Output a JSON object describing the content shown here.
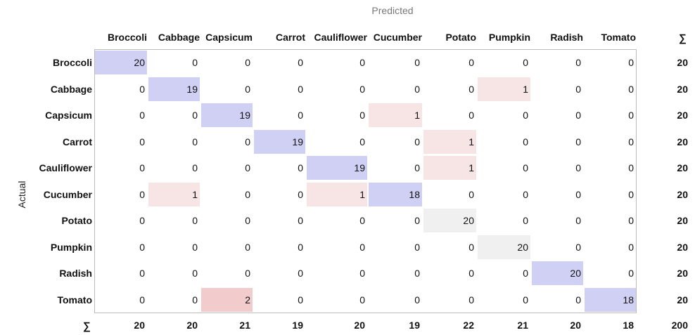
{
  "chart_data": {
    "type": "heatmap",
    "xlabel": "Predicted",
    "ylabel": "Actual",
    "categories": [
      "Broccoli",
      "Cabbage",
      "Capsicum",
      "Carrot",
      "Cauliflower",
      "Cucumber",
      "Potato",
      "Pumpkin",
      "Radish",
      "Tomato"
    ],
    "matrix": [
      [
        20,
        0,
        0,
        0,
        0,
        0,
        0,
        0,
        0,
        0
      ],
      [
        0,
        19,
        0,
        0,
        0,
        0,
        0,
        1,
        0,
        0
      ],
      [
        0,
        0,
        19,
        0,
        0,
        1,
        0,
        0,
        0,
        0
      ],
      [
        0,
        0,
        0,
        19,
        0,
        0,
        1,
        0,
        0,
        0
      ],
      [
        0,
        0,
        0,
        0,
        19,
        0,
        1,
        0,
        0,
        0
      ],
      [
        0,
        1,
        0,
        0,
        1,
        18,
        0,
        0,
        0,
        0
      ],
      [
        0,
        0,
        0,
        0,
        0,
        0,
        20,
        0,
        0,
        0
      ],
      [
        0,
        0,
        0,
        0,
        0,
        0,
        0,
        20,
        0,
        0
      ],
      [
        0,
        0,
        0,
        0,
        0,
        0,
        0,
        0,
        20,
        0
      ],
      [
        0,
        0,
        2,
        0,
        0,
        0,
        0,
        0,
        0,
        18
      ]
    ],
    "row_totals": [
      20,
      20,
      20,
      20,
      20,
      20,
      20,
      20,
      20,
      20
    ],
    "col_totals": [
      20,
      20,
      21,
      19,
      20,
      19,
      22,
      21,
      20,
      18
    ],
    "grand_total": 200,
    "sum_symbol": "∑",
    "colors": {
      "diagonal": "#d0d0f4",
      "diagonal_neutral": "#f0f0f0",
      "error_light": "#f7e4e4",
      "error_strong": "#f2cccc"
    }
  }
}
